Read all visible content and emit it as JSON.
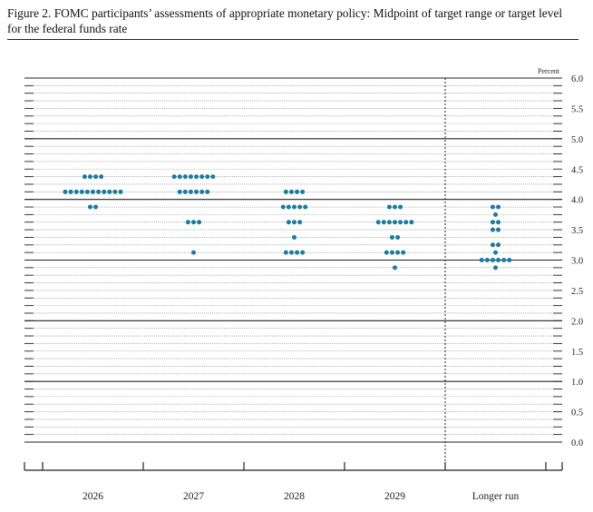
{
  "figure": {
    "title": "Figure 2. FOMC participants’ assessments of appropriate monetary policy: Midpoint of target range or target level for the federal funds rate",
    "unit_label": "Percent"
  },
  "colors": {
    "dot": "#1a7aa0",
    "axis": "#222222",
    "major_line": "#222222",
    "minor_line": "#777777"
  },
  "chart_data": {
    "type": "scatter",
    "title": "",
    "xlabel": "",
    "ylabel": "Percent",
    "ylim": [
      0,
      6
    ],
    "y_major_ticks": [
      0.0,
      0.5,
      1.0,
      1.5,
      2.0,
      2.5,
      3.0,
      3.5,
      4.0,
      4.5,
      5.0,
      5.5,
      6.0
    ],
    "y_tick_labels": [
      "0.0",
      "0.5",
      "1.0",
      "1.5",
      "2.0",
      "2.5",
      "3.0",
      "3.5",
      "4.0",
      "4.5",
      "5.0",
      "5.5",
      "6.0"
    ],
    "y_minor_step": 0.125,
    "solid_gridlines": [
      0,
      1,
      2,
      3,
      4,
      5,
      6
    ],
    "grid": true,
    "categories": [
      "2026",
      "2027",
      "2028",
      "2029",
      "Longer run"
    ],
    "divider_before": "Longer run",
    "dots": [
      {
        "category": "2026",
        "rows": [
          {
            "y": 4.375,
            "count": 4
          },
          {
            "y": 4.125,
            "count": 11
          },
          {
            "y": 3.875,
            "count": 2
          }
        ]
      },
      {
        "category": "2027",
        "rows": [
          {
            "y": 4.375,
            "count": 8
          },
          {
            "y": 4.125,
            "count": 6
          },
          {
            "y": 3.625,
            "count": 3
          },
          {
            "y": 3.125,
            "count": 1
          }
        ]
      },
      {
        "category": "2028",
        "rows": [
          {
            "y": 4.125,
            "count": 4
          },
          {
            "y": 3.875,
            "count": 5
          },
          {
            "y": 3.625,
            "count": 3
          },
          {
            "y": 3.375,
            "count": 1
          },
          {
            "y": 3.125,
            "count": 4
          }
        ]
      },
      {
        "category": "2029",
        "rows": [
          {
            "y": 3.875,
            "count": 3
          },
          {
            "y": 3.625,
            "count": 7
          },
          {
            "y": 3.375,
            "count": 2
          },
          {
            "y": 3.125,
            "count": 4
          },
          {
            "y": 2.875,
            "count": 1
          }
        ]
      },
      {
        "category": "Longer run",
        "rows": [
          {
            "y": 3.875,
            "count": 2
          },
          {
            "y": 3.75,
            "count": 1
          },
          {
            "y": 3.625,
            "count": 2
          },
          {
            "y": 3.5,
            "count": 2
          },
          {
            "y": 3.25,
            "count": 2
          },
          {
            "y": 3.125,
            "count": 1
          },
          {
            "y": 3.0,
            "count": 6
          },
          {
            "y": 2.875,
            "count": 1
          }
        ]
      }
    ]
  }
}
